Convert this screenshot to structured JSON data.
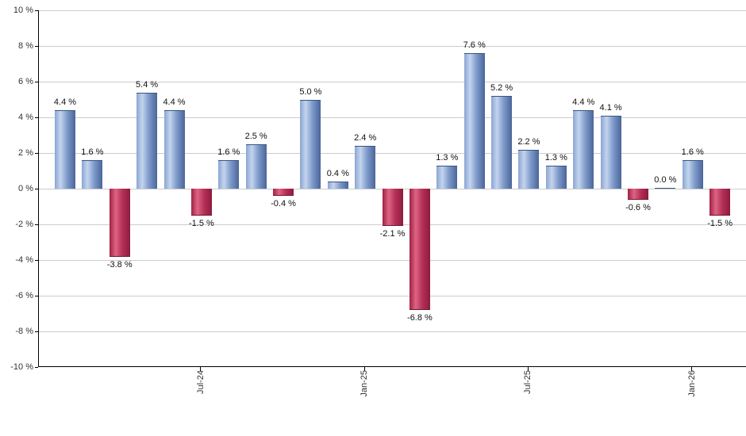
{
  "chart_data": {
    "type": "bar",
    "title": "",
    "xlabel": "",
    "ylabel": "",
    "values": [
      4.4,
      1.6,
      -3.8,
      5.4,
      4.4,
      -1.5,
      1.6,
      2.5,
      -0.4,
      5.0,
      0.4,
      2.4,
      -2.1,
      -6.8,
      1.3,
      7.6,
      5.2,
      2.2,
      1.3,
      4.4,
      4.1,
      -0.6,
      0.0,
      1.6,
      -1.5
    ],
    "bar_labels": [
      "4.4 %",
      "1.6 %",
      "-3.8 %",
      "5.4 %",
      "4.4 %",
      "-1.5 %",
      "1.6 %",
      "2.5 %",
      "-0.4 %",
      "5.0 %",
      "0.4 %",
      "2.4 %",
      "-2.1 %",
      "-6.8 %",
      "1.3 %",
      "7.6 %",
      "5.2 %",
      "2.2 %",
      "1.3 %",
      "4.4 %",
      "4.1 %",
      "-0.6 %",
      "0.0 %",
      "1.6 %",
      "-1.5 %"
    ],
    "x_ticks": [
      {
        "index": 5,
        "label": "Jul-24"
      },
      {
        "index": 11,
        "label": "Jan-25"
      },
      {
        "index": 17,
        "label": "Jul-25"
      },
      {
        "index": 23,
        "label": "Jan-26"
      }
    ],
    "y_ticks": [
      "10 %",
      "8 %",
      "6 %",
      "4 %",
      "2 %",
      "0 %",
      "-2 %",
      "-4 %",
      "-6 %",
      "-8 %",
      "-10 %"
    ],
    "ylim": [
      -10,
      10
    ],
    "y_step": 2,
    "grid": true,
    "legend": "none",
    "colors": {
      "positive_bar": "#7e9aca",
      "positive_bar_light": "#c3d4ee",
      "positive_bar_dark": "#4a659a",
      "negative_bar": "#b53057",
      "negative_bar_light": "#dd6483",
      "negative_bar_dark": "#8c1c3e",
      "gridline": "#cccccc",
      "axis": "#000000",
      "value_label_text": "#111111",
      "tick_text": "#333333",
      "background": "#ffffff"
    }
  }
}
